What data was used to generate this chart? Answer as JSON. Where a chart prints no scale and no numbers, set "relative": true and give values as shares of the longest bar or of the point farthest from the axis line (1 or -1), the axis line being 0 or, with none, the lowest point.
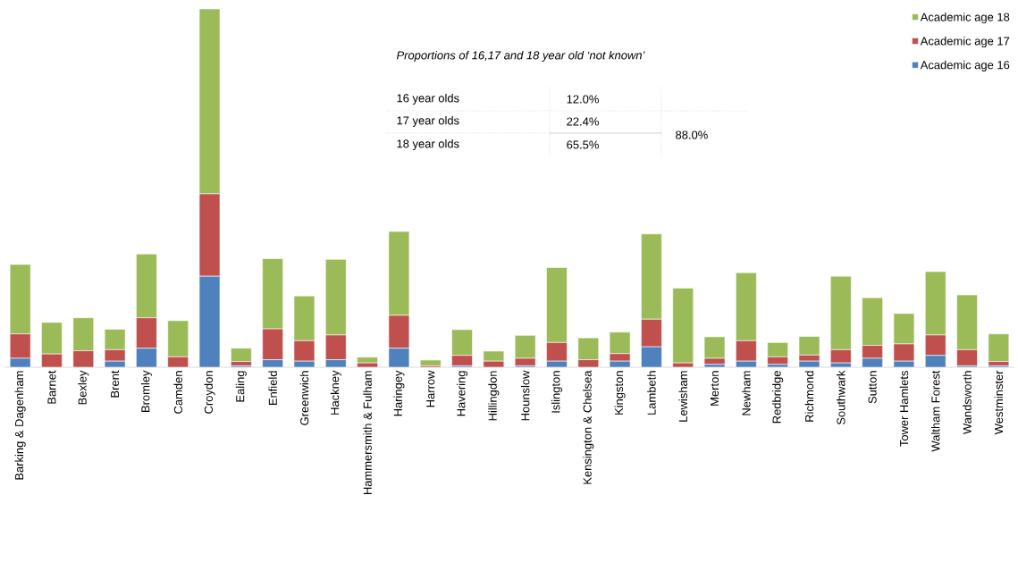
{
  "chart_data": {
    "type": "bar",
    "stacked": true,
    "relative": true,
    "legend": "top right",
    "categories": [
      "Barking & Dagenham",
      "Barnet",
      "Bexley",
      "Brent",
      "Bromley",
      "Camden",
      "Croydon",
      "Ealing",
      "Enfield",
      "Greenwich",
      "Hackney",
      "Hammersmith & Fulham",
      "Haringey",
      "Harrow",
      "Havering",
      "Hillingdon",
      "Hounslow",
      "Islington",
      "Kensington & Chelsea",
      "Kingston",
      "Lambeth",
      "Lewisham",
      "Merton",
      "Newham",
      "Redbridge",
      "Richmond",
      "Southwark",
      "Sutton",
      "Tower Hamlets",
      "Waltham Forest",
      "Wandsworth",
      "Westminster"
    ],
    "series": [
      {
        "name": "Academic age 16",
        "color": "#4f81bd",
        "values": [
          0.025,
          0,
          0,
          0.017,
          0.053,
          0,
          0.254,
          0.004,
          0.021,
          0.017,
          0.021,
          0,
          0.053,
          0,
          0.004,
          0,
          0.004,
          0.017,
          0,
          0.017,
          0.057,
          0,
          0.008,
          0.017,
          0.008,
          0.017,
          0.012,
          0.025,
          0.017,
          0.033,
          0.004,
          0.004
        ]
      },
      {
        "name": "Academic age 17",
        "color": "#c0504d",
        "values": [
          0.068,
          0.037,
          0.046,
          0.032,
          0.085,
          0.029,
          0.23,
          0.012,
          0.086,
          0.057,
          0.069,
          0.012,
          0.092,
          0.004,
          0.029,
          0.017,
          0.021,
          0.052,
          0.021,
          0.021,
          0.077,
          0.012,
          0.017,
          0.057,
          0.021,
          0.017,
          0.037,
          0.036,
          0.048,
          0.057,
          0.045,
          0.012
        ]
      },
      {
        "name": "Academic age 18",
        "color": "#9bbb59",
        "values": [
          0.194,
          0.088,
          0.092,
          0.057,
          0.178,
          0.101,
          0.516,
          0.037,
          0.196,
          0.125,
          0.211,
          0.016,
          0.234,
          0.016,
          0.072,
          0.028,
          0.064,
          0.209,
          0.061,
          0.06,
          0.238,
          0.209,
          0.06,
          0.19,
          0.04,
          0.052,
          0.205,
          0.133,
          0.085,
          0.177,
          0.153,
          0.077
        ]
      }
    ],
    "annotations": [
      "*Proportions of 16,17 and 18 year old ‘not known’*",
      "16 year olds",
      "12.0%",
      "17 year olds",
      "22.4%",
      "18 year olds",
      "65.5%",
      "88.0%"
    ]
  }
}
